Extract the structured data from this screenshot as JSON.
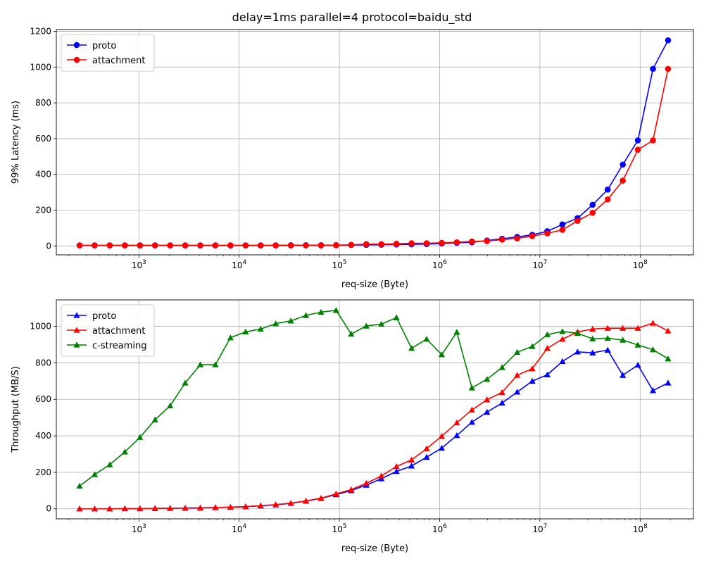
{
  "figure": {
    "suptitle": "delay=1ms parallel=4 protocol=baidu_std"
  },
  "chart_data": [
    {
      "type": "line",
      "xscale": "log",
      "xlabel": "req-size (Byte)",
      "ylabel": "99% Latency (ms)",
      "ylim": [
        -50,
        1210
      ],
      "yticks": [
        0,
        200,
        400,
        600,
        800,
        1000,
        1200
      ],
      "xticks": [
        1000,
        10000,
        100000,
        1000000,
        10000000,
        100000000
      ],
      "xtick_labels": [
        {
          "base": "10",
          "exp": "3"
        },
        {
          "base": "10",
          "exp": "4"
        },
        {
          "base": "10",
          "exp": "5"
        },
        {
          "base": "10",
          "exp": "6"
        },
        {
          "base": "10",
          "exp": "7"
        },
        {
          "base": "10",
          "exp": "8"
        }
      ],
      "grid": true,
      "legend_position": "upper-left",
      "marker": "circle",
      "x": [
        256,
        362,
        512,
        724,
        1024,
        1448,
        2048,
        2896,
        4096,
        5793,
        8192,
        11585,
        16384,
        23170,
        32768,
        46341,
        65536,
        92682,
        131072,
        185364,
        262144,
        370728,
        524288,
        741455,
        1048576,
        1482910,
        2097152,
        2965821,
        4194304,
        5931642,
        8388608,
        11863283,
        16777216,
        23726566,
        33554432,
        47453133,
        67108864,
        94906265,
        134217728,
        189812531
      ],
      "series": [
        {
          "name": "proto",
          "color": "#0000ff",
          "values": [
            3,
            3,
            3,
            3,
            3,
            3,
            3,
            3,
            3,
            3,
            3,
            3,
            3,
            3,
            4,
            4,
            4,
            4,
            5,
            6,
            7,
            8,
            9,
            10,
            13,
            17,
            20,
            30,
            40,
            50,
            62,
            82,
            120,
            155,
            230,
            315,
            455,
            590,
            990,
            1150
          ]
        },
        {
          "name": "attachment",
          "color": "#ff0000",
          "values": [
            3,
            3,
            3,
            3,
            3,
            3,
            3,
            3,
            3,
            3,
            3,
            3,
            3,
            3,
            3,
            3,
            3,
            4,
            6,
            10,
            10,
            12,
            15,
            15,
            17,
            20,
            25,
            27,
            35,
            42,
            55,
            70,
            90,
            140,
            185,
            260,
            365,
            538,
            590,
            990
          ]
        }
      ]
    },
    {
      "type": "line",
      "xscale": "log",
      "xlabel": "req-size (Byte)",
      "ylabel": "Throughput (MB/S)",
      "ylim": [
        -55,
        1145
      ],
      "yticks": [
        0,
        200,
        400,
        600,
        800,
        1000
      ],
      "xticks": [
        1000,
        10000,
        100000,
        1000000,
        10000000,
        100000000
      ],
      "xtick_labels": [
        {
          "base": "10",
          "exp": "3"
        },
        {
          "base": "10",
          "exp": "4"
        },
        {
          "base": "10",
          "exp": "5"
        },
        {
          "base": "10",
          "exp": "6"
        },
        {
          "base": "10",
          "exp": "7"
        },
        {
          "base": "10",
          "exp": "8"
        }
      ],
      "grid": true,
      "legend_position": "upper-left",
      "marker": "triangle",
      "x": [
        256,
        362,
        512,
        724,
        1024,
        1448,
        2048,
        2896,
        4096,
        5793,
        8192,
        11585,
        16384,
        23170,
        32768,
        46341,
        65536,
        92682,
        131072,
        185364,
        262144,
        370728,
        524288,
        741455,
        1048576,
        1482910,
        2097152,
        2965821,
        4194304,
        5931642,
        8388608,
        11863283,
        16777216,
        23726566,
        33554432,
        47453133,
        67108864,
        94906265,
        134217728,
        189812531
      ],
      "series": [
        {
          "name": "proto",
          "color": "#0000ff",
          "values": [
            0,
            0,
            0,
            1,
            1,
            2,
            3,
            4,
            5,
            7,
            9,
            12,
            16,
            22,
            30,
            42,
            57,
            78,
            100,
            130,
            165,
            205,
            235,
            283,
            333,
            402,
            475,
            530,
            580,
            640,
            700,
            735,
            808,
            860,
            855,
            870,
            732,
            788,
            648,
            690
          ]
        },
        {
          "name": "attachment",
          "color": "#ff0000",
          "values": [
            0,
            0,
            0,
            1,
            1,
            2,
            3,
            4,
            5,
            7,
            9,
            12,
            17,
            23,
            31,
            43,
            58,
            82,
            105,
            140,
            180,
            232,
            268,
            330,
            398,
            472,
            542,
            598,
            638,
            732,
            768,
            880,
            930,
            970,
            985,
            990,
            990,
            990,
            1018,
            975
          ]
        },
        {
          "name": "c-streaming",
          "color": "#008000",
          "values": [
            125,
            188,
            242,
            312,
            392,
            488,
            565,
            690,
            790,
            790,
            938,
            970,
            985,
            1015,
            1030,
            1060,
            1078,
            1088,
            958,
            1002,
            1012,
            1048,
            880,
            930,
            845,
            968,
            663,
            710,
            775,
            858,
            890,
            955,
            972,
            962,
            932,
            935,
            925,
            898,
            872,
            822
          ]
        }
      ]
    }
  ]
}
